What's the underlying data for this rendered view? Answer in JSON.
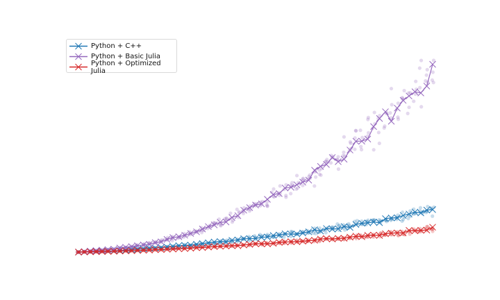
{
  "chart_data": {
    "type": "line",
    "title": "",
    "xlabel": "",
    "ylabel": "",
    "axes_visible": false,
    "grid": false,
    "legend_position": "top-left",
    "xlim": [
      0,
      100
    ],
    "ylim": [
      0,
      100
    ],
    "markers": "x",
    "scatter_overlay": true,
    "series": [
      {
        "name": "Python + C++",
        "color": "#1f77b4",
        "x": [
          0,
          10,
          20,
          30,
          40,
          50,
          60,
          70,
          80,
          90,
          100
        ],
        "y": [
          0,
          0.6,
          1.8,
          3.2,
          5,
          6.9,
          9,
          11.4,
          14,
          17,
          21.5
        ]
      },
      {
        "name": "Python + Basic Julia",
        "color": "#9467bd",
        "x": [
          0,
          10,
          20,
          30,
          40,
          50,
          60,
          70,
          80,
          90,
          100
        ],
        "y": [
          0,
          1.5,
          4,
          8.3,
          14.5,
          23,
          32,
          43,
          56,
          71,
          88
        ]
      },
      {
        "name": "Python + Optimized Julia",
        "color": "#d62728",
        "x": [
          0,
          10,
          20,
          30,
          40,
          50,
          60,
          70,
          80,
          90,
          100
        ],
        "y": [
          0,
          0.4,
          1,
          1.8,
          2.8,
          3.9,
          5,
          6.3,
          7.7,
          9.3,
          11.5
        ]
      }
    ]
  }
}
